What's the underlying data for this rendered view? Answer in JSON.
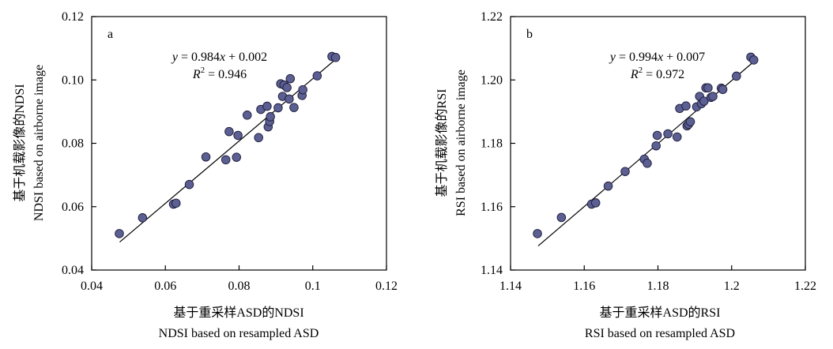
{
  "chart_data": [
    {
      "type": "scatter",
      "panel_label": "a",
      "equation": "y = 0.984x + 0.002",
      "r_squared": "R2 = 0.946",
      "xlabel_cn": "基于重采样ASD的NDSI",
      "xlabel_en": "NDSI based on resampled  ASD",
      "ylabel_cn": "基于机载影像的NDSI",
      "ylabel_en": "NDSI based on airborne image",
      "xlim": [
        0.04,
        0.12
      ],
      "ylim": [
        0.04,
        0.12
      ],
      "xticks": [
        0.04,
        0.06,
        0.08,
        0.1,
        0.12
      ],
      "yticks": [
        0.04,
        0.06,
        0.08,
        0.1,
        0.12
      ],
      "xtick_labels": [
        "0.04",
        "0.06",
        "0.08",
        "0.1",
        "0.12"
      ],
      "ytick_labels": [
        "0.04",
        "0.06",
        "0.08",
        "0.10",
        "0.12"
      ],
      "fit": {
        "slope": 0.984,
        "intercept": 0.002,
        "x_range": [
          0.0476,
          0.1065
        ]
      },
      "x": [
        0.0475,
        0.0538,
        0.0622,
        0.0629,
        0.0665,
        0.071,
        0.0764,
        0.0773,
        0.0793,
        0.0797,
        0.0822,
        0.0853,
        0.0859,
        0.0876,
        0.0879,
        0.0883,
        0.0885,
        0.0906,
        0.0913,
        0.0918,
        0.0922,
        0.093,
        0.0936,
        0.0939,
        0.0949,
        0.0971,
        0.0973,
        0.1012,
        0.1052,
        0.1062
      ],
      "y": [
        0.0515,
        0.0565,
        0.0608,
        0.0611,
        0.067,
        0.0757,
        0.0748,
        0.0837,
        0.0756,
        0.0825,
        0.0889,
        0.0818,
        0.0907,
        0.0917,
        0.0852,
        0.0869,
        0.0884,
        0.0912,
        0.0988,
        0.0948,
        0.0984,
        0.0976,
        0.094,
        0.1004,
        0.0913,
        0.0951,
        0.0969,
        0.1013,
        0.1074,
        0.1071
      ]
    },
    {
      "type": "scatter",
      "panel_label": "b",
      "equation": "y = 0.994x + 0.007",
      "r_squared": "R2 = 0.972",
      "xlabel_cn": "基于重采样ASD的RSI",
      "xlabel_en": "RSI based on resampled ASD",
      "ylabel_cn": "基于机载影像的RSI",
      "ylabel_en": "RSI based on airborne image",
      "xlim": [
        1.14,
        1.22
      ],
      "ylim": [
        1.14,
        1.22
      ],
      "xticks": [
        1.14,
        1.16,
        1.18,
        1.2,
        1.22
      ],
      "yticks": [
        1.14,
        1.16,
        1.18,
        1.2,
        1.22
      ],
      "xtick_labels": [
        "1.14",
        "1.16",
        "1.18",
        "1.2",
        "1.22"
      ],
      "ytick_labels": [
        "1.14",
        "1.16",
        "1.18",
        "1.20",
        "1.22"
      ],
      "fit": {
        "slope": 0.994,
        "intercept": 0.007,
        "x_range": [
          1.1475,
          1.2065
        ]
      },
      "x": [
        1.1473,
        1.1538,
        1.162,
        1.1631,
        1.1665,
        1.1711,
        1.1763,
        1.1771,
        1.1795,
        1.1798,
        1.1827,
        1.1852,
        1.1859,
        1.1876,
        1.1879,
        1.1883,
        1.1888,
        1.1905,
        1.1913,
        1.1918,
        1.1925,
        1.193,
        1.1936,
        1.1944,
        1.1949,
        1.1972,
        1.1976,
        1.2013,
        1.2052,
        1.206
      ],
      "y": [
        1.1515,
        1.1566,
        1.1608,
        1.1612,
        1.1665,
        1.1711,
        1.175,
        1.1737,
        1.1792,
        1.1825,
        1.183,
        1.182,
        1.191,
        1.1918,
        1.1855,
        1.186,
        1.1868,
        1.1915,
        1.1948,
        1.1925,
        1.1933,
        1.1975,
        1.1975,
        1.1945,
        1.1948,
        1.1974,
        1.197,
        1.2012,
        1.2072,
        1.2063
      ]
    }
  ]
}
